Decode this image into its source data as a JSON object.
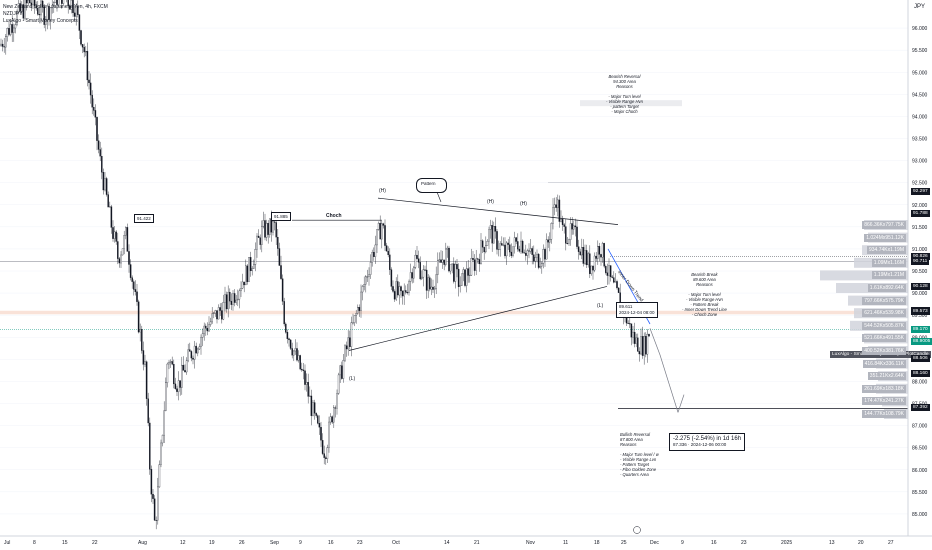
{
  "header": {
    "title": "New Zealand Dollar / Japanese Yen, 4h, FXCM",
    "symbol": "NZDJPY",
    "indicator": "LuxAlgo - Smart Money Concepts"
  },
  "currency": "JPY",
  "annotations": {
    "bearish_reversal": [
      "Bearish Reversal",
      "94.300 Area",
      "Reasons",
      "",
      "- Major Turn level",
      "- Visible Range Hvn",
      "- pattern Target",
      "- Major Choch"
    ],
    "bearish_break": [
      "Bearish Break",
      "89.600 Area",
      "Reasons",
      "",
      "- Major Turn level",
      "- Visible Range Hvn",
      "- Pattern Break",
      "- Inner Down Trend Line",
      "- Choch Zone"
    ],
    "bullish_reversal": [
      "Bullish Reversal",
      "87.800 Area",
      "Reasons",
      "",
      "- Major Turn level / w",
      "- Visible Range Lvn",
      "- Pattern Target",
      "- Fibo Golden Zone",
      "- Quarters Area"
    ],
    "pattern_label": "Pattern",
    "choch_label": "Choch",
    "inner_trend_label": "Inner Down Trend",
    "price_tag_1": "91.422",
    "price_tag_2": "91.885",
    "price_tag_3": "89.611",
    "price_tag_3_sub": "2024-12-04 08:00",
    "hs_labels": [
      "(H)",
      "(H)",
      "(H)",
      "(L)",
      "(L)"
    ],
    "measure_main": "-2.275 (-2.54%) in 1d 16h",
    "measure_sub": "87.336 · 2024-12-06 00:00"
  },
  "axis": {
    "y_ticks": [
      "96.000",
      "95.500",
      "95.000",
      "94.500",
      "94.000",
      "93.500",
      "93.000",
      "92.500",
      "92.000",
      "91.500",
      "91.000",
      "90.500",
      "90.000",
      "89.500",
      "89.000",
      "88.500",
      "88.000",
      "87.500",
      "87.000",
      "86.500",
      "86.000",
      "85.500",
      "85.000"
    ],
    "x_labels": [
      "Jul",
      "8",
      "15",
      "22",
      "Aug",
      "12",
      "19",
      "26",
      "Sep",
      "9",
      "16",
      "23",
      "Oct",
      "14",
      "21",
      "Nov",
      "11",
      "18",
      "25",
      "Dec",
      "9",
      "16",
      "23",
      "2025",
      "13",
      "20",
      "27"
    ]
  },
  "price_badges": [
    {
      "text": "92.297",
      "color": "#131722"
    },
    {
      "text": "91.788",
      "color": "#131722"
    },
    {
      "text": "90.826",
      "color": "#131722"
    },
    {
      "text": "90.711",
      "color": "#131722"
    },
    {
      "text": "90.128",
      "color": "#131722"
    },
    {
      "text": "89.591",
      "color": "#131722"
    },
    {
      "text": "89.573",
      "color": "#131722"
    },
    {
      "text": "89.170",
      "color": "#089981"
    },
    {
      "text": "88.9005",
      "color": "#089981"
    },
    {
      "text": "88.160",
      "color": "#131722"
    },
    {
      "text": "88.506",
      "color": "#131722"
    },
    {
      "text": "87.392",
      "color": "#131722"
    }
  ],
  "luxalgo_label": "LuxAlgo - Smart Money Concepts:PlotCandle",
  "volume_profile": [
    {
      "text": "866.36Kx797.75K"
    },
    {
      "text": "1.024Mx951.12K"
    },
    {
      "text": "934.74Kx1.19M"
    },
    {
      "text": "1.09Mx1.16M"
    },
    {
      "text": "1.19Mx1.21M"
    },
    {
      "text": "1.61Kx892.64K"
    },
    {
      "text": "797.66Kx575.79K"
    },
    {
      "text": "621.46Kx539.98K"
    },
    {
      "text": "544.52Kx505.87K"
    },
    {
      "text": "521.66Kx491.55K"
    },
    {
      "text": "400.52Kx381.76K"
    },
    {
      "text": "416.84Kx336.11K"
    },
    {
      "text": "351.21Kx2.64K"
    },
    {
      "text": "261.69Kx183.18K"
    },
    {
      "text": "174.47Kx241.27K"
    },
    {
      "text": "144.77Kx108.79K"
    }
  ],
  "colors": {
    "up": "#089981",
    "down": "#131722",
    "candle": "#131722",
    "accent": "#2962ff",
    "hline": "#787b86"
  },
  "chart_data": {
    "type": "candlestick",
    "title": "New Zealand Dollar / Japanese Yen, 4h, FXCM",
    "ylim": [
      84.5,
      96.5
    ],
    "x_range": [
      "Jul",
      "27"
    ],
    "price_path": [
      [
        0,
        95.6
      ],
      [
        14,
        96.2
      ],
      [
        30,
        96.6
      ],
      [
        45,
        96.3
      ],
      [
        60,
        96.8
      ],
      [
        75,
        96.5
      ],
      [
        85,
        95.4
      ],
      [
        100,
        93.0
      ],
      [
        110,
        91.7
      ],
      [
        118,
        90.8
      ],
      [
        126,
        91.3
      ],
      [
        135,
        89.9
      ],
      [
        145,
        88.3
      ],
      [
        150,
        86.0
      ],
      [
        155,
        84.7
      ],
      [
        160,
        86.1
      ],
      [
        168,
        88.6
      ],
      [
        178,
        87.9
      ],
      [
        190,
        88.6
      ],
      [
        205,
        89.2
      ],
      [
        220,
        89.6
      ],
      [
        235,
        90.0
      ],
      [
        250,
        90.6
      ],
      [
        262,
        91.4
      ],
      [
        275,
        91.5
      ],
      [
        285,
        89.3
      ],
      [
        295,
        88.6
      ],
      [
        305,
        88.0
      ],
      [
        315,
        87.1
      ],
      [
        325,
        86.4
      ],
      [
        335,
        87.6
      ],
      [
        345,
        88.6
      ],
      [
        355,
        89.4
      ],
      [
        370,
        90.7
      ],
      [
        382,
        91.6
      ],
      [
        392,
        90.2
      ],
      [
        402,
        89.8
      ],
      [
        415,
        90.8
      ],
      [
        430,
        90.1
      ],
      [
        445,
        90.9
      ],
      [
        460,
        90.2
      ],
      [
        475,
        90.7
      ],
      [
        490,
        91.4
      ],
      [
        505,
        90.9
      ],
      [
        520,
        91.2
      ],
      [
        535,
        90.7
      ],
      [
        547,
        91.0
      ],
      [
        556,
        92.2
      ],
      [
        562,
        91.4
      ],
      [
        575,
        91.3
      ],
      [
        590,
        90.6
      ],
      [
        600,
        91.1
      ],
      [
        610,
        90.3
      ],
      [
        622,
        89.7
      ],
      [
        635,
        88.9
      ],
      [
        645,
        88.8
      ],
      [
        650,
        89.2
      ]
    ],
    "projection": [
      [
        650,
        89.2
      ],
      [
        660,
        88.6
      ],
      [
        678,
        87.3
      ]
    ],
    "horizontal_levels": [
      90.71,
      89.59,
      89.17,
      87.39
    ]
  }
}
